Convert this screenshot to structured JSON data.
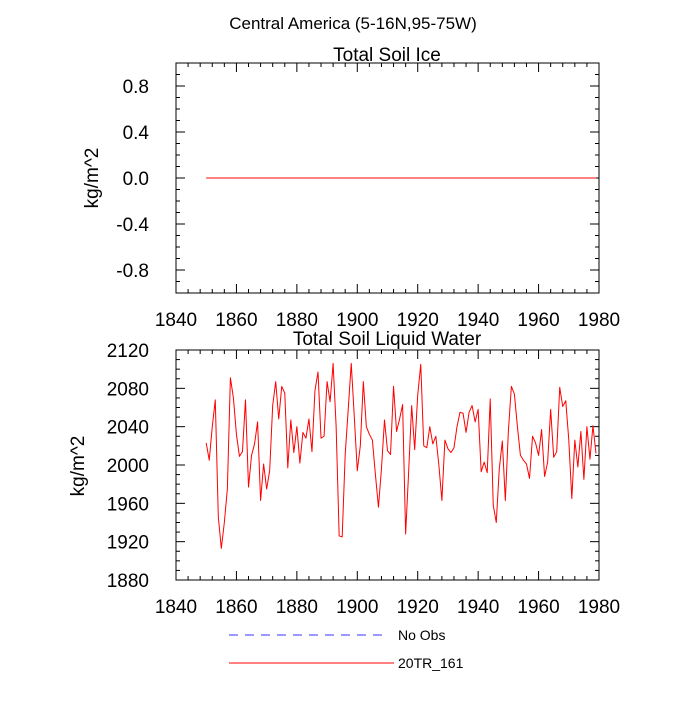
{
  "figure_title": "Central America (5-16N,95-75W)",
  "colors": {
    "series": "#ff0000",
    "obs": "#3333ff",
    "axis": "#000000"
  },
  "chart_data": [
    {
      "type": "line",
      "title": "Total Soil Ice",
      "xlabel": "",
      "ylabel": "kg/m^2",
      "xlim": [
        1840,
        1980
      ],
      "ylim": [
        -1.0,
        1.0
      ],
      "xticks": [
        1840,
        1860,
        1880,
        1900,
        1920,
        1940,
        1960,
        1980
      ],
      "xtick_labels": [
        "1840",
        "1860",
        "1880",
        "1900",
        "1920",
        "1940",
        "1960",
        "1980"
      ],
      "yticks": [
        -0.8,
        -0.4,
        0.0,
        0.4,
        0.8
      ],
      "ytick_labels": [
        "-0.8",
        "-0.4",
        "0.0",
        "0.4",
        "0.8"
      ],
      "series": [
        {
          "name": "20TR_161",
          "x": [
            1850,
            1979
          ],
          "values": [
            0,
            0
          ]
        }
      ]
    },
    {
      "type": "line",
      "title": "Total Soil Liquid Water",
      "xlabel": "",
      "ylabel": "kg/m^2",
      "xlim": [
        1840,
        1980
      ],
      "ylim": [
        1880,
        2120
      ],
      "xticks": [
        1840,
        1860,
        1880,
        1900,
        1920,
        1940,
        1960,
        1980
      ],
      "xtick_labels": [
        "1840",
        "1860",
        "1880",
        "1900",
        "1920",
        "1940",
        "1960",
        "1980"
      ],
      "yticks": [
        1880,
        1920,
        1960,
        2000,
        2040,
        2080,
        2120
      ],
      "ytick_labels": [
        "1880",
        "1920",
        "1960",
        "2000",
        "2040",
        "2080",
        "2120"
      ],
      "series": [
        {
          "name": "20TR_161",
          "x_start": 1850,
          "x_step": 1,
          "values": [
            2023,
            2005,
            2040,
            2068,
            1946,
            1913,
            1940,
            1975,
            2091,
            2070,
            2032,
            2009,
            2014,
            2068,
            1977,
            2010,
            2022,
            2045,
            1963,
            2001,
            1975,
            1994,
            2062,
            2087,
            2048,
            2082,
            2075,
            1997,
            2047,
            2013,
            2040,
            2002,
            2034,
            2028,
            2048,
            2014,
            2078,
            2097,
            2028,
            2030,
            2087,
            2066,
            2106,
            2040,
            1926,
            1925,
            2011,
            2058,
            2106,
            2051,
            1994,
            2020,
            2087,
            2040,
            2032,
            2026,
            1990,
            1956,
            1996,
            2047,
            2015,
            2011,
            2082,
            2035,
            2048,
            2063,
            1928,
            1993,
            2062,
            2016,
            2073,
            2105,
            2020,
            2018,
            2040,
            2022,
            2030,
            2000,
            1963,
            2026,
            2017,
            2013,
            2018,
            2040,
            2055,
            2054,
            2034,
            2055,
            2062,
            2045,
            2058,
            1993,
            2003,
            1992,
            2069,
            1958,
            1940,
            1996,
            2025,
            1963,
            2035,
            2082,
            2074,
            2040,
            2010,
            2005,
            2001,
            1986,
            2030,
            2023,
            2010,
            2037,
            1988,
            2003,
            2058,
            2008,
            2014,
            2081,
            2061,
            2067,
            2026,
            1965,
            2026,
            1998,
            2035,
            1985,
            2040,
            2006,
            2041,
            2012
          ]
        }
      ]
    }
  ],
  "legend": {
    "position": "bottom-center",
    "items": [
      {
        "label": "No Obs",
        "style": "dashed",
        "color": "#3333ff"
      },
      {
        "label": "20TR_161",
        "style": "solid",
        "color": "#ff0000"
      }
    ]
  }
}
